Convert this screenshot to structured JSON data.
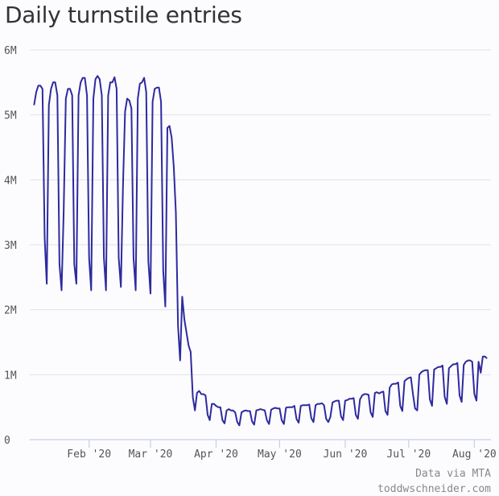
{
  "chart_data": {
    "type": "line",
    "title": "Daily turnstile entries",
    "xlabel": "",
    "ylabel": "",
    "ylim": [
      0,
      6000000
    ],
    "xlim": [
      "2020-01-06",
      "2020-08-07"
    ],
    "y_ticks": [
      {
        "value": 0,
        "label": "0"
      },
      {
        "value": 1000000,
        "label": "1M"
      },
      {
        "value": 2000000,
        "label": "2M"
      },
      {
        "value": 3000000,
        "label": "3M"
      },
      {
        "value": 4000000,
        "label": "4M"
      },
      {
        "value": 5000000,
        "label": "5M"
      },
      {
        "value": 6000000,
        "label": "6M"
      }
    ],
    "x_ticks": [
      {
        "date": "2020-02-01",
        "label": "Feb '20"
      },
      {
        "date": "2020-03-01",
        "label": "Mar '20"
      },
      {
        "date": "2020-04-01",
        "label": "Apr '20"
      },
      {
        "date": "2020-05-01",
        "label": "May '20"
      },
      {
        "date": "2020-06-01",
        "label": "Jun '20"
      },
      {
        "date": "2020-07-01",
        "label": "Jul '20"
      },
      {
        "date": "2020-08-01",
        "label": "Aug '20"
      }
    ],
    "grid": true,
    "line_color": "#2e2a9f",
    "unit": "millions of entries",
    "weeks": [
      {
        "week_of": "2020-01-06",
        "values": [
          5.15,
          5.35,
          5.45,
          5.45,
          5.4,
          3.1,
          2.4
        ]
      },
      {
        "week_of": "2020-01-13",
        "values": [
          5.15,
          5.4,
          5.5,
          5.5,
          5.3,
          2.7,
          2.3
        ]
      },
      {
        "week_of": "2020-01-20",
        "values": [
          3.5,
          5.25,
          5.4,
          5.4,
          5.3,
          2.7,
          2.4
        ]
      },
      {
        "week_of": "2020-01-27",
        "values": [
          5.3,
          5.5,
          5.57,
          5.57,
          5.3,
          2.8,
          2.3
        ]
      },
      {
        "week_of": "2020-02-03",
        "values": [
          5.25,
          5.55,
          5.6,
          5.55,
          5.3,
          2.8,
          2.3
        ]
      },
      {
        "week_of": "2020-02-10",
        "values": [
          5.3,
          5.5,
          5.5,
          5.58,
          5.4,
          2.8,
          2.35
        ]
      },
      {
        "week_of": "2020-02-17",
        "values": [
          3.9,
          5.05,
          5.25,
          5.22,
          5.1,
          2.8,
          2.3
        ]
      },
      {
        "week_of": "2020-02-24",
        "values": [
          5.25,
          5.48,
          5.5,
          5.57,
          5.35,
          2.75,
          2.25
        ]
      },
      {
        "week_of": "2020-03-02",
        "values": [
          5.2,
          5.4,
          5.42,
          5.42,
          5.2,
          2.6,
          2.05
        ]
      },
      {
        "week_of": "2020-03-09",
        "values": [
          4.8,
          4.83,
          4.65,
          4.2,
          3.5,
          1.75,
          1.22
        ]
      },
      {
        "week_of": "2020-03-16",
        "values": [
          2.2,
          1.85,
          1.65,
          1.45,
          1.35,
          0.65,
          0.45
        ]
      },
      {
        "week_of": "2020-03-23",
        "values": [
          0.72,
          0.75,
          0.7,
          0.7,
          0.68,
          0.38,
          0.3
        ]
      },
      {
        "week_of": "2020-03-30",
        "values": [
          0.55,
          0.55,
          0.52,
          0.5,
          0.5,
          0.3,
          0.25
        ]
      },
      {
        "week_of": "2020-04-06",
        "values": [
          0.45,
          0.47,
          0.45,
          0.45,
          0.42,
          0.27,
          0.22
        ]
      },
      {
        "week_of": "2020-04-13",
        "values": [
          0.42,
          0.44,
          0.45,
          0.44,
          0.44,
          0.28,
          0.23
        ]
      },
      {
        "week_of": "2020-04-20",
        "values": [
          0.45,
          0.46,
          0.47,
          0.46,
          0.45,
          0.3,
          0.24
        ]
      },
      {
        "week_of": "2020-04-27",
        "values": [
          0.46,
          0.48,
          0.49,
          0.48,
          0.48,
          0.3,
          0.24
        ]
      },
      {
        "week_of": "2020-05-04",
        "values": [
          0.49,
          0.5,
          0.5,
          0.5,
          0.52,
          0.32,
          0.26
        ]
      },
      {
        "week_of": "2020-05-11",
        "values": [
          0.52,
          0.53,
          0.53,
          0.53,
          0.54,
          0.33,
          0.27
        ]
      },
      {
        "week_of": "2020-05-18",
        "values": [
          0.53,
          0.55,
          0.55,
          0.56,
          0.53,
          0.32,
          0.27
        ]
      },
      {
        "week_of": "2020-05-25",
        "values": [
          0.35,
          0.57,
          0.59,
          0.6,
          0.6,
          0.36,
          0.3
        ]
      },
      {
        "week_of": "2020-06-01",
        "values": [
          0.6,
          0.61,
          0.63,
          0.63,
          0.64,
          0.38,
          0.32
        ]
      },
      {
        "week_of": "2020-06-08",
        "values": [
          0.62,
          0.68,
          0.7,
          0.7,
          0.69,
          0.42,
          0.35
        ]
      },
      {
        "week_of": "2020-06-15",
        "values": [
          0.72,
          0.73,
          0.71,
          0.73,
          0.74,
          0.44,
          0.38
        ]
      },
      {
        "week_of": "2020-06-22",
        "values": [
          0.8,
          0.85,
          0.86,
          0.86,
          0.88,
          0.52,
          0.44
        ]
      },
      {
        "week_of": "2020-06-29",
        "values": [
          0.9,
          0.93,
          0.95,
          0.96,
          0.7,
          0.48,
          0.45
        ]
      },
      {
        "week_of": "2020-07-06",
        "values": [
          1.0,
          1.04,
          1.06,
          1.07,
          1.07,
          0.62,
          0.52
        ]
      },
      {
        "week_of": "2020-07-13",
        "values": [
          1.08,
          1.1,
          1.12,
          1.12,
          1.14,
          0.66,
          0.55
        ]
      },
      {
        "week_of": "2020-07-20",
        "values": [
          1.1,
          1.13,
          1.16,
          1.16,
          1.18,
          0.68,
          0.58
        ]
      },
      {
        "week_of": "2020-07-27",
        "values": [
          1.15,
          1.2,
          1.22,
          1.22,
          1.2,
          0.7,
          0.6
        ]
      },
      {
        "week_of": "2020-08-03",
        "values": [
          1.2,
          1.03,
          1.28,
          1.28,
          1.25
        ]
      }
    ]
  },
  "credits": {
    "source": "Data via MTA",
    "site": "toddwschneider.com"
  }
}
